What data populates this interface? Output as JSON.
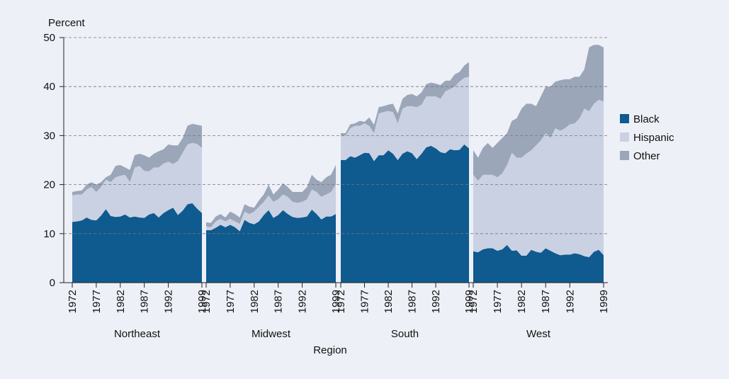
{
  "chart_data": {
    "type": "area",
    "stacked": true,
    "ylabel": "Percent",
    "xlabel": "Region",
    "ylim": [
      0,
      50
    ],
    "yticks": [
      0,
      10,
      20,
      30,
      40,
      50
    ],
    "grid": true,
    "x": [
      1972,
      1973,
      1974,
      1975,
      1976,
      1977,
      1978,
      1979,
      1980,
      1981,
      1982,
      1983,
      1984,
      1985,
      1986,
      1987,
      1988,
      1989,
      1990,
      1991,
      1992,
      1993,
      1994,
      1995,
      1996,
      1997,
      1998,
      1999
    ],
    "xlim": [
      1972,
      1999
    ],
    "xticks": [
      1972,
      1977,
      1982,
      1987,
      1992,
      1999
    ],
    "legend": "right",
    "series": [
      {
        "name": "Black",
        "color": "#0f5a8f"
      },
      {
        "name": "Hispanic",
        "color": "#c9d1e3"
      },
      {
        "name": "Other",
        "color": "#9ba6b9"
      }
    ],
    "panels": [
      {
        "name": "Northeast",
        "series": [
          {
            "values": [
              12.4,
              12.5,
              12.7,
              13.3,
              12.8,
              12.7,
              13.7,
              15.0,
              13.6,
              13.4,
              13.5,
              13.9,
              13.3,
              13.5,
              13.3,
              13.2,
              13.9,
              14.2,
              13.3,
              14.2,
              14.8,
              15.3,
              13.8,
              14.7,
              16.0,
              16.2,
              15.1,
              14.2
            ]
          },
          {
            "values": [
              5.4,
              5.5,
              5.3,
              5.7,
              6.7,
              5.8,
              5.8,
              6.0,
              6.9,
              8.1,
              8.3,
              8.1,
              7.2,
              10.0,
              10.5,
              9.6,
              8.8,
              9.3,
              10.2,
              10.1,
              9.9,
              8.9,
              11.0,
              11.8,
              12.2,
              12.3,
              13.2,
              13.3
            ]
          },
          {
            "values": [
              0.7,
              0.7,
              0.8,
              1.0,
              1.0,
              1.5,
              1.0,
              0.5,
              1.5,
              2.3,
              2.2,
              1.5,
              2.5,
              2.5,
              2.5,
              3.2,
              2.8,
              2.8,
              3.3,
              2.9,
              3.5,
              3.8,
              3.2,
              3.0,
              3.8,
              3.9,
              3.9,
              4.5
            ]
          }
        ]
      },
      {
        "name": "Midwest",
        "series": [
          {
            "values": [
              10.7,
              10.7,
              11.2,
              11.8,
              11.3,
              11.8,
              11.3,
              10.5,
              12.8,
              12.2,
              11.9,
              12.5,
              13.8,
              14.8,
              13.2,
              13.8,
              14.8,
              14.0,
              13.4,
              13.2,
              13.3,
              13.5,
              14.9,
              14.0,
              12.9,
              13.5,
              13.5,
              14.0
            ]
          },
          {
            "values": [
              0.8,
              0.6,
              1.3,
              1.2,
              1.2,
              1.2,
              1.2,
              1.5,
              1.7,
              1.8,
              2.6,
              3.0,
              2.7,
              3.0,
              3.3,
              3.2,
              3.2,
              3.5,
              3.1,
              3.1,
              3.2,
              3.5,
              4.1,
              4.5,
              4.6,
              4.5,
              5.0,
              6.0
            ]
          },
          {
            "values": [
              0.8,
              0.9,
              1.0,
              1.0,
              0.8,
              1.5,
              1.5,
              1.3,
              1.5,
              1.5,
              0.8,
              1.3,
              1.5,
              2.2,
              1.5,
              2.0,
              2.3,
              2.0,
              2.0,
              2.2,
              2.0,
              2.5,
              3.0,
              2.5,
              3.0,
              3.5,
              3.5,
              4.0
            ]
          }
        ]
      },
      {
        "name": "South",
        "series": [
          {
            "values": [
              25.0,
              25.0,
              25.8,
              25.5,
              26.0,
              26.5,
              26.4,
              24.8,
              26.0,
              26.0,
              27.0,
              26.3,
              25.0,
              26.3,
              26.8,
              26.4,
              25.2,
              26.3,
              27.6,
              27.9,
              27.4,
              26.6,
              26.4,
              27.2,
              27.0,
              27.1,
              28.2,
              27.4
            ]
          },
          {
            "values": [
              5.0,
              5.0,
              5.7,
              6.5,
              6.0,
              6.0,
              5.6,
              5.7,
              8.5,
              8.8,
              8.0,
              8.5,
              7.5,
              9.2,
              9.2,
              9.6,
              10.6,
              10.0,
              10.4,
              10.1,
              10.6,
              10.9,
              12.6,
              12.3,
              13.0,
              13.9,
              13.6,
              14.6
            ]
          },
          {
            "values": [
              0.5,
              0.5,
              0.8,
              0.5,
              1.0,
              0.3,
              1.7,
              1.7,
              1.3,
              1.2,
              1.3,
              1.7,
              2.0,
              2.0,
              2.3,
              2.5,
              2.2,
              2.5,
              2.5,
              2.8,
              2.6,
              2.8,
              2.2,
              1.7,
              2.5,
              2.0,
              2.5,
              3.0
            ]
          }
        ]
      },
      {
        "name": "West",
        "series": [
          {
            "values": [
              6.4,
              6.2,
              6.8,
              7.0,
              7.0,
              6.5,
              6.8,
              7.7,
              6.5,
              6.6,
              5.5,
              5.5,
              6.7,
              6.3,
              6.1,
              7.0,
              6.5,
              6.0,
              5.6,
              5.7,
              5.7,
              6.0,
              5.8,
              5.4,
              5.2,
              6.3,
              6.7,
              5.6
            ]
          },
          {
            "values": [
              15.6,
              14.6,
              15.2,
              15.0,
              15.0,
              15.0,
              15.5,
              16.3,
              20.0,
              18.9,
              20.0,
              20.8,
              20.3,
              21.7,
              22.9,
              23.5,
              23.0,
              25.5,
              25.4,
              25.8,
              26.6,
              26.5,
              27.7,
              30.1,
              29.8,
              30.2,
              30.6,
              31.4
            ]
          },
          {
            "values": [
              5.0,
              4.7,
              5.5,
              6.5,
              5.5,
              7.0,
              7.2,
              6.5,
              6.5,
              8.0,
              10.0,
              10.2,
              9.5,
              8.0,
              9.0,
              9.5,
              10.5,
              9.5,
              10.3,
              10.0,
              9.2,
              9.5,
              8.5,
              8.0,
              13.0,
              12.0,
              11.2,
              11.0
            ]
          }
        ]
      }
    ]
  }
}
